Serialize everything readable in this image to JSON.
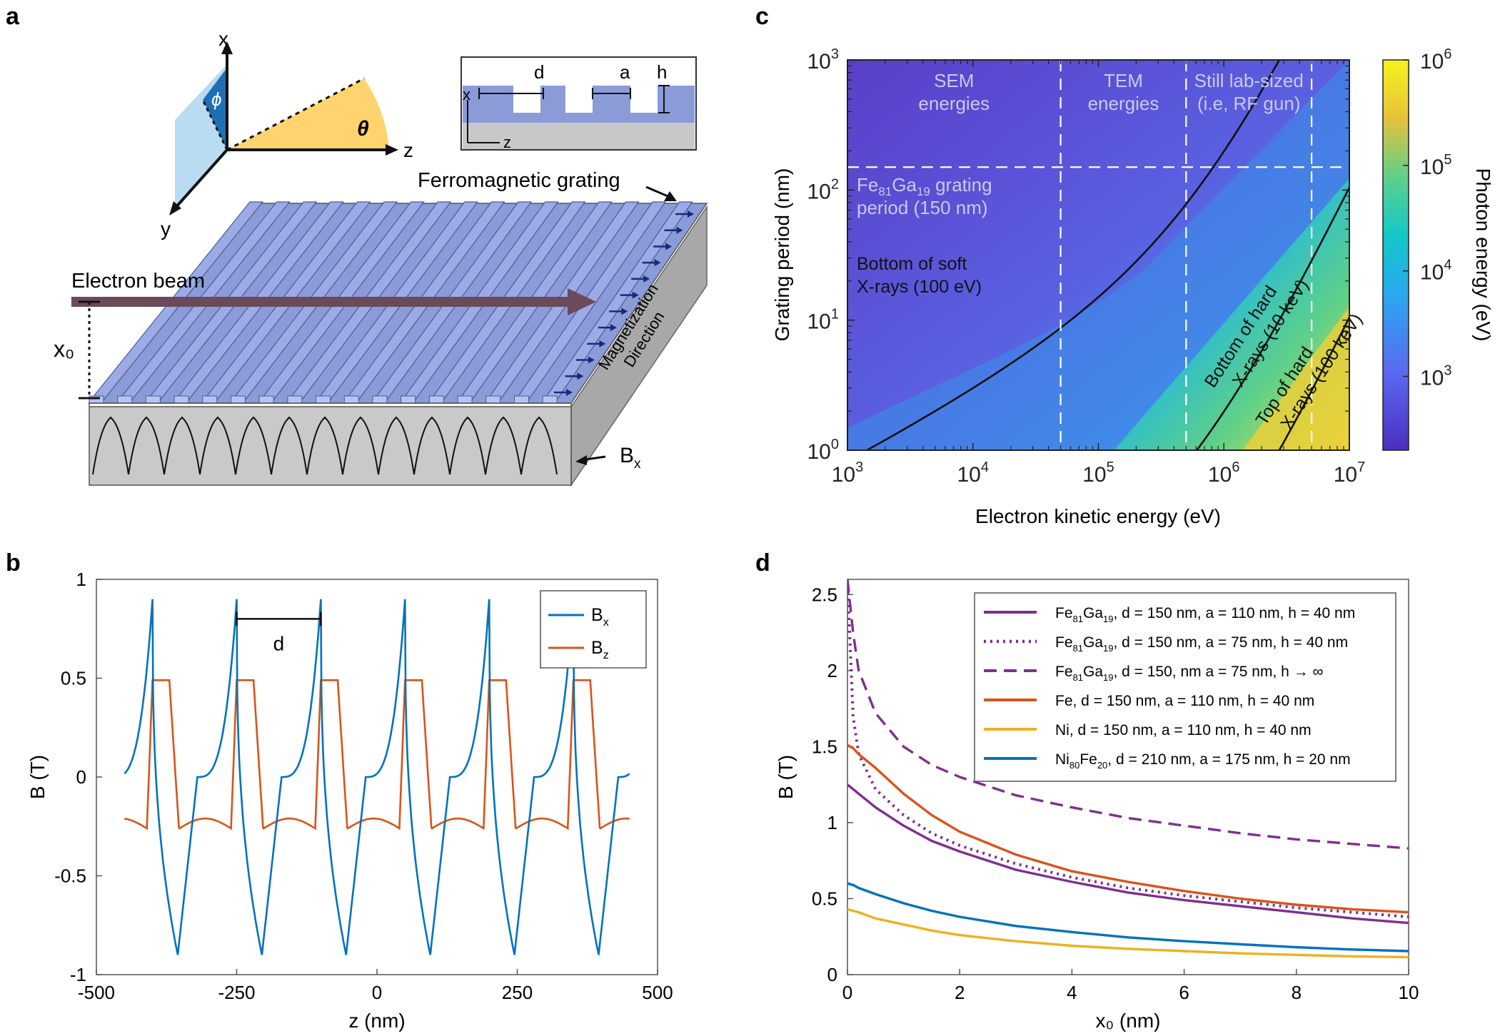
{
  "panel_labels": {
    "a": "a",
    "b": "b",
    "c": "c",
    "d": "d"
  },
  "panel_a": {
    "axis_x": "x",
    "axis_y": "y",
    "axis_z": "z",
    "phi": "ϕ",
    "theta": "θ",
    "inset_d": "d",
    "inset_a": "a",
    "inset_h": "h",
    "inset_x": "x",
    "inset_z": "z",
    "grating_label": "Ferromagnetic grating",
    "beam_label": "Electron beam",
    "x0_label": "x₀",
    "magnetization_line1": "Magnetization",
    "magnetization_line2": "Direction",
    "bx_main": "B",
    "bx_sub": "x",
    "colors": {
      "grating": "#8a9bd8",
      "grating_top": "#9aabe6",
      "base_front": "#c9c9c9",
      "base_side": "#a8a8a8",
      "beam": "#6b4a5a",
      "theta_fill": "#ffd36e",
      "phi_fill": "#1f6fb5",
      "plane_fill": "#b9dcf2"
    }
  },
  "chart_data": [
    {
      "panel": "b",
      "type": "line",
      "xlabel": "z (nm)",
      "ylabel": "B (T)",
      "xlim": [
        -500,
        500
      ],
      "ylim": [
        -1,
        1
      ],
      "xticks": [
        -500,
        -250,
        0,
        250,
        500
      ],
      "yticks": [
        1,
        0.5,
        0,
        -0.5,
        -1
      ],
      "xtick_labels": [
        "-500",
        "-250",
        "0",
        "250",
        "500"
      ],
      "ytick_labels": [
        "1",
        "0.5",
        "0",
        "-0.5",
        "-1"
      ],
      "period_nm": 150,
      "bx_peak_z": [
        -400,
        -250,
        -100,
        50,
        200,
        350
      ],
      "bx_trough_z": [
        -355,
        -205,
        -55,
        95,
        245,
        395
      ],
      "bx_peak": 0.9,
      "bx_trough": -0.9,
      "bz_high": 0.49,
      "bz_low": -0.26,
      "series": [
        {
          "name": "Bx",
          "label_main": "B",
          "label_sub": "x",
          "color": "#0072bd"
        },
        {
          "name": "Bz",
          "label_main": "B",
          "label_sub": "z",
          "color": "#d95319"
        }
      ],
      "annotation": "d",
      "annotation_z": [
        -250,
        -100
      ]
    },
    {
      "panel": "c",
      "type": "heatmap",
      "xlabel": "Electron kinetic energy (eV)",
      "ylabel": "Grating period (nm)",
      "colorbar_label": "Photon energy (eV)",
      "x_log_range": [
        3,
        7
      ],
      "y_log_range": [
        0,
        3
      ],
      "xtick_labels": [
        {
          "b": "10",
          "e": "3"
        },
        {
          "b": "10",
          "e": "4"
        },
        {
          "b": "10",
          "e": "5"
        },
        {
          "b": "10",
          "e": "6"
        },
        {
          "b": "10",
          "e": "7"
        }
      ],
      "ytick_labels": [
        {
          "b": "10",
          "e": "3"
        },
        {
          "b": "10",
          "e": "2"
        },
        {
          "b": "10",
          "e": "1"
        },
        {
          "b": "10",
          "e": "0"
        }
      ],
      "colorbar_ticks": [
        {
          "b": "10",
          "e": "6"
        },
        {
          "b": "10",
          "e": "5"
        },
        {
          "b": "10",
          "e": "4"
        },
        {
          "b": "10",
          "e": "3"
        }
      ],
      "colorbar_log_range": [
        2.3,
        6
      ],
      "vertical_lines_eV": [
        50000,
        500000,
        5000000
      ],
      "horizontal_line_nm": 150,
      "region_labels": [
        {
          "line1": "SEM",
          "line2": "energies"
        },
        {
          "line1": "TEM",
          "line2": "energies"
        },
        {
          "line1": "Still lab-sized",
          "line2": "(i.e, RF gun)"
        }
      ],
      "grating_note": {
        "pre": "Fe",
        "sub1": "81",
        "mid": "Ga",
        "sub2": "19",
        "post": " grating",
        "line2": "period (150 nm)"
      },
      "contours": [
        {
          "photon_eV": 100,
          "line1": "Bottom of soft",
          "line2": "X-rays (100 eV)"
        },
        {
          "photon_eV": 10000,
          "line1": "Bottom of hard",
          "line2": "X-rays (10 keV)"
        },
        {
          "photon_eV": 100000,
          "line1": "Top of hard",
          "line2": "X-rays (100 keV)"
        }
      ]
    },
    {
      "panel": "d",
      "type": "line",
      "xlabel": "x₀ (nm)",
      "ylabel": "B (T)",
      "xlim": [
        0,
        10
      ],
      "ylim": [
        0,
        2.6
      ],
      "xticks": [
        0,
        2,
        4,
        6,
        8,
        10
      ],
      "yticks": [
        0,
        0.5,
        1,
        1.5,
        2,
        2.5
      ],
      "xtick_labels": [
        "0",
        "2",
        "4",
        "6",
        "8",
        "10"
      ],
      "ytick_labels": [
        "0",
        "0.5",
        "1",
        "1.5",
        "2",
        "2.5"
      ],
      "x": [
        0,
        0.1,
        0.2,
        0.5,
        1,
        1.5,
        2,
        3,
        4,
        5,
        6,
        7,
        8,
        9,
        10
      ],
      "series": [
        {
          "name": "FeGa h=40 a=110",
          "legend": {
            "m": "Fe",
            "s1": "81",
            "m2": "Ga",
            "s2": "19",
            "rest": ", d = 150 nm, a = 110 nm, h = 40 nm"
          },
          "color": "#7e2f8e",
          "dash": "solid",
          "values": [
            1.25,
            1.22,
            1.19,
            1.1,
            0.98,
            0.88,
            0.81,
            0.69,
            0.61,
            0.54,
            0.49,
            0.45,
            0.41,
            0.37,
            0.34
          ]
        },
        {
          "name": "FeGa h=40 a=75",
          "legend": {
            "m": "Fe",
            "s1": "81",
            "m2": "Ga",
            "s2": "19",
            "rest": ", d = 150 nm, a = 75 nm,   h = 40 nm"
          },
          "color": "#7e2f8e",
          "dash": "dot",
          "values": [
            2.6,
            1.7,
            1.45,
            1.22,
            1.05,
            0.93,
            0.85,
            0.73,
            0.64,
            0.57,
            0.52,
            0.48,
            0.44,
            0.41,
            0.38
          ]
        },
        {
          "name": "FeGa h=inf",
          "legend": {
            "m": "Fe",
            "s1": "81",
            "m2": "Ga",
            "s2": "19",
            "rest": ", d = 150, nm a = 75 nm,   h → ∞"
          },
          "color": "#7e2f8e",
          "dash": "dash",
          "values": [
            2.6,
            2.25,
            2.0,
            1.72,
            1.5,
            1.38,
            1.3,
            1.18,
            1.1,
            1.03,
            0.98,
            0.93,
            0.89,
            0.86,
            0.83
          ]
        },
        {
          "name": "Fe",
          "legend": {
            "m": "Fe,",
            "s1": "",
            "m2": "",
            "s2": "",
            "rest": "          d = 150 nm, a = 110 nm, h = 40 nm"
          },
          "color": "#d95319",
          "dash": "solid",
          "values": [
            1.51,
            1.49,
            1.45,
            1.36,
            1.19,
            1.05,
            0.94,
            0.79,
            0.68,
            0.61,
            0.55,
            0.5,
            0.46,
            0.43,
            0.41
          ]
        },
        {
          "name": "Ni",
          "legend": {
            "m": "Ni,",
            "s1": "",
            "m2": "",
            "s2": "",
            "rest": "           d = 150 nm, a = 110 nm, h = 40 nm"
          },
          "color": "#edb120",
          "dash": "solid",
          "values": [
            0.43,
            0.42,
            0.41,
            0.37,
            0.33,
            0.29,
            0.26,
            0.22,
            0.19,
            0.17,
            0.155,
            0.14,
            0.13,
            0.12,
            0.115
          ]
        },
        {
          "name": "NiFe",
          "legend": {
            "m": "Ni",
            "s1": "80",
            "m2": "Fe",
            "s2": "20",
            "rest": ", d = 210 nm, a = 175 nm, h = 20 nm"
          },
          "color": "#0072bd",
          "dash": "solid",
          "values": [
            0.6,
            0.59,
            0.57,
            0.53,
            0.47,
            0.42,
            0.38,
            0.32,
            0.28,
            0.245,
            0.22,
            0.2,
            0.18,
            0.165,
            0.155
          ]
        }
      ]
    }
  ]
}
